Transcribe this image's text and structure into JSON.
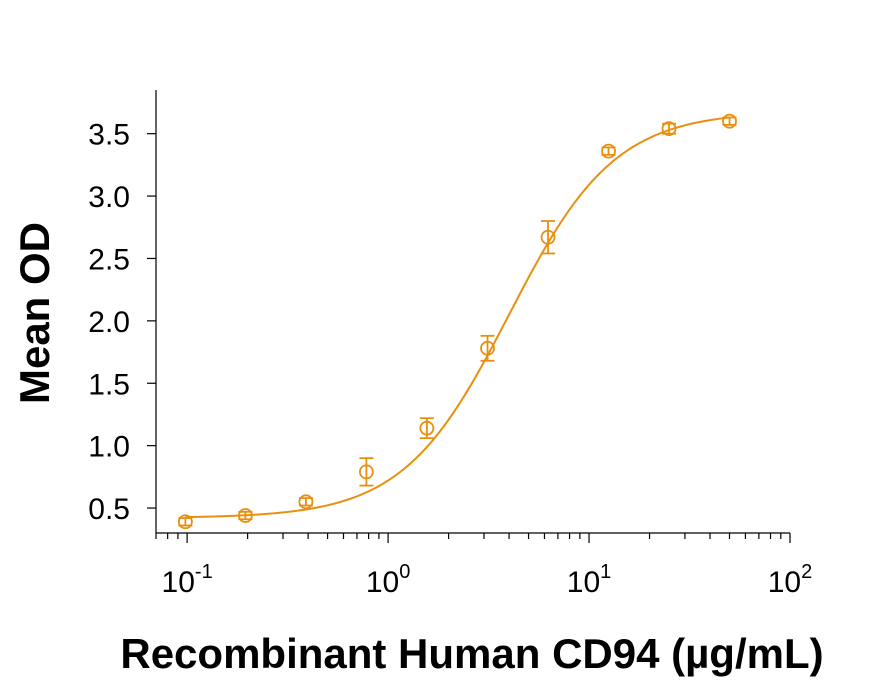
{
  "chart_data": {
    "type": "scatter",
    "title": "",
    "xlabel": "Recombinant Human CD94 (µg/mL)",
    "ylabel": "Mean OD",
    "xscale": "log",
    "xlim": [
      0.07,
      100
    ],
    "ylim": [
      0.3,
      3.85
    ],
    "x_tick_labels": [
      {
        "base": "10",
        "exp": "-1"
      },
      {
        "base": "10",
        "exp": "0"
      },
      {
        "base": "10",
        "exp": "1"
      },
      {
        "base": "10",
        "exp": "2"
      }
    ],
    "y_ticks": [
      0.5,
      1.0,
      1.5,
      2.0,
      2.5,
      3.0,
      3.5
    ],
    "y_tick_labels": [
      "0.5",
      "1.0",
      "1.5",
      "2.0",
      "2.5",
      "3.0",
      "3.5"
    ],
    "grid": false,
    "color": "#e8900e",
    "series": [
      {
        "x": [
          0.098,
          0.195,
          0.39,
          0.78,
          1.56,
          3.125,
          6.25,
          12.5,
          25,
          50
        ],
        "y": [
          0.39,
          0.44,
          0.55,
          0.79,
          1.14,
          1.78,
          2.67,
          3.36,
          3.54,
          3.6
        ],
        "error": [
          0.03,
          0.03,
          0.03,
          0.11,
          0.08,
          0.1,
          0.13,
          0.03,
          0.04,
          0.03
        ]
      }
    ],
    "fit": {
      "model": "4PL",
      "bottom": 0.42,
      "top": 3.68,
      "ec50": 4.0,
      "hill": 1.65
    }
  }
}
